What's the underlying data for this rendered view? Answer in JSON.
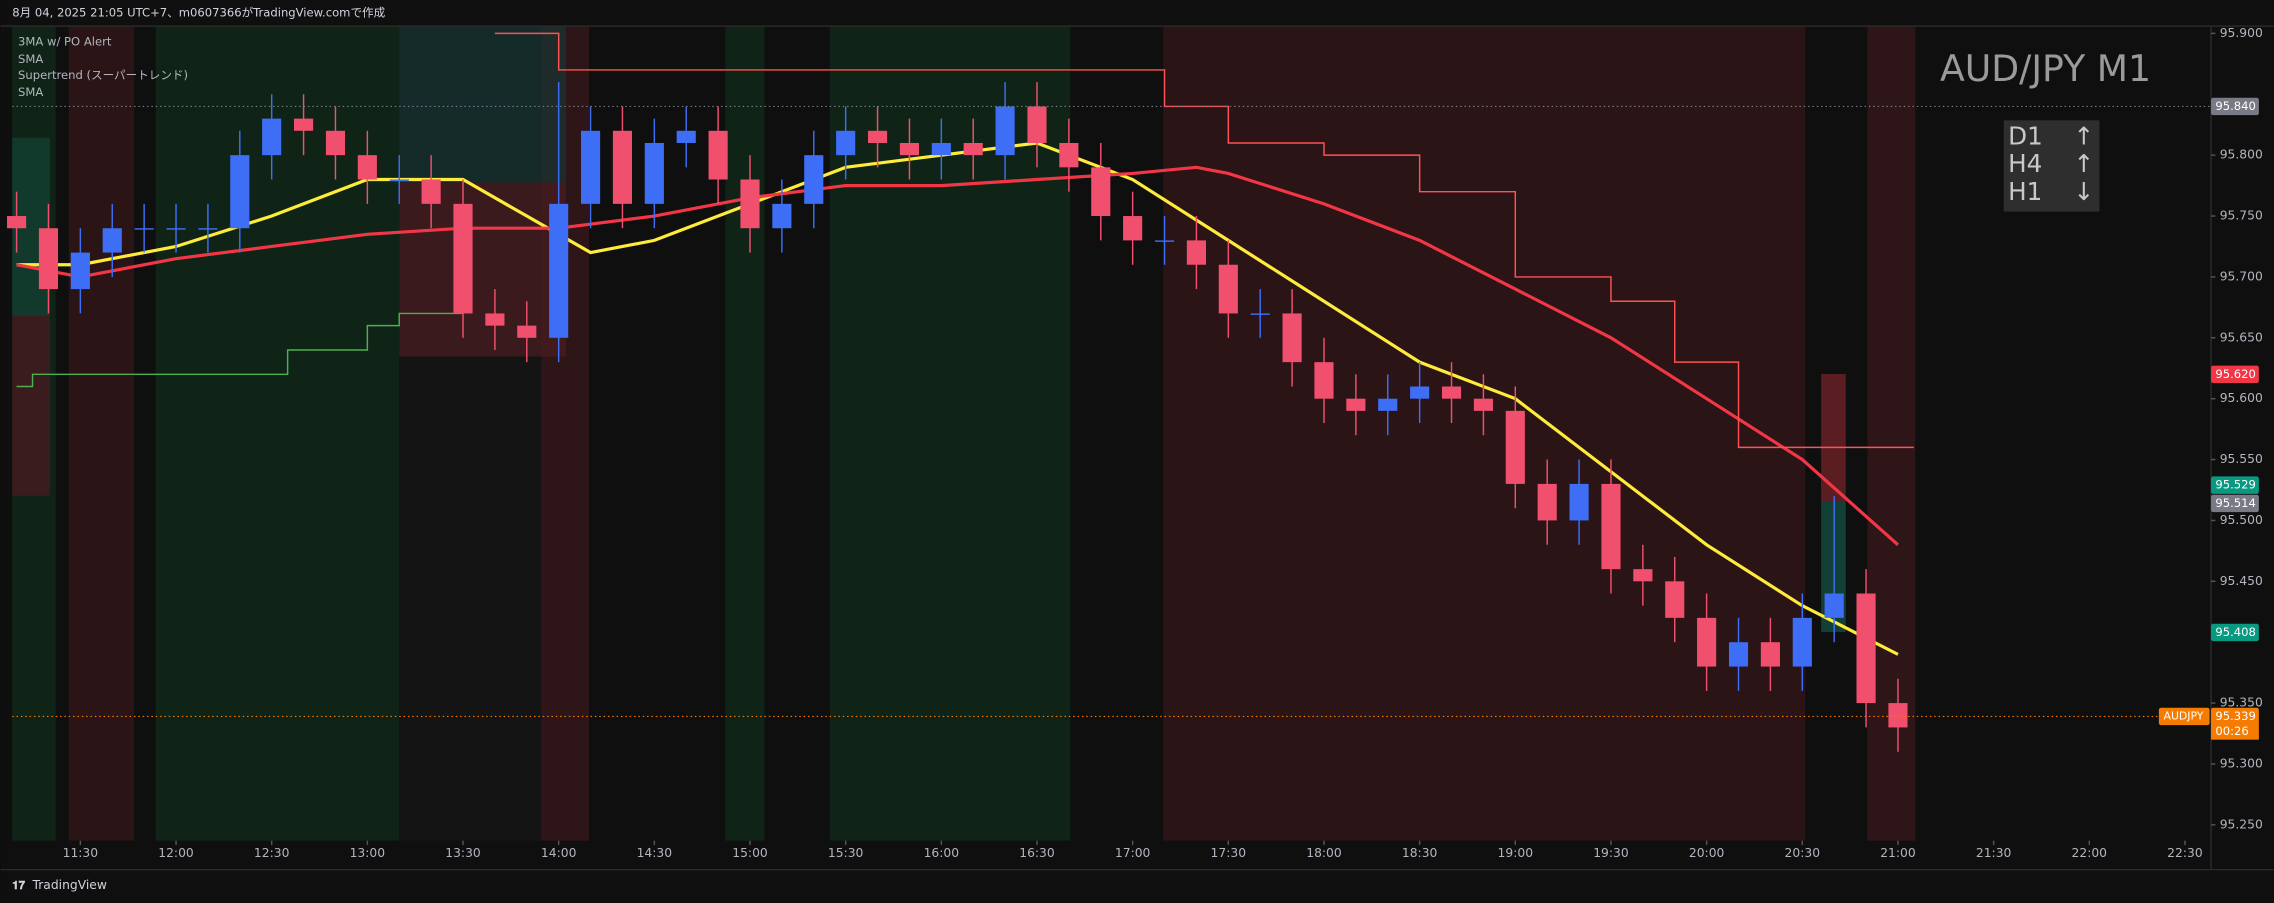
{
  "header": "8月 04, 2025 21:05 UTC+7、m0607366がTradingView.comで作成",
  "indicators": [
    "3MA w/ PO Alert",
    "SMA",
    "Supertrend (スーパートレンド)",
    "SMA"
  ],
  "symbol_title": "AUD/JPY M1",
  "trend_table": [
    {
      "tf": "D1",
      "arrow": "↑"
    },
    {
      "tf": "H4",
      "arrow": "↑"
    },
    {
      "tf": "H1",
      "arrow": "↓"
    }
  ],
  "footer": "TradingView",
  "chart_data": {
    "type": "candlestick",
    "x": [
      "11:10",
      "11:20",
      "11:30",
      "11:40",
      "11:50",
      "12:00",
      "12:10",
      "12:20",
      "12:30",
      "12:40",
      "12:50",
      "13:00",
      "13:10",
      "13:20",
      "13:30",
      "13:40",
      "13:50",
      "14:00",
      "14:10",
      "14:20",
      "14:30",
      "14:40",
      "14:50",
      "15:00",
      "15:10",
      "15:20",
      "15:30",
      "15:40",
      "15:50",
      "16:00",
      "16:10",
      "16:20",
      "16:30",
      "16:40",
      "16:50",
      "17:00",
      "17:10",
      "17:20",
      "17:30",
      "17:40",
      "17:50",
      "18:00",
      "18:10",
      "18:20",
      "18:30",
      "18:40",
      "18:50",
      "19:00",
      "19:10",
      "19:20",
      "19:30",
      "19:40",
      "19:50",
      "20:00",
      "20:10",
      "20:20",
      "20:30",
      "20:40",
      "20:50",
      "21:00"
    ],
    "open": [
      95.75,
      95.74,
      95.69,
      95.72,
      95.74,
      95.74,
      95.74,
      95.74,
      95.8,
      95.83,
      95.82,
      95.8,
      95.78,
      95.78,
      95.76,
      95.67,
      95.66,
      95.65,
      95.76,
      95.82,
      95.76,
      95.81,
      95.82,
      95.78,
      95.74,
      95.76,
      95.8,
      95.82,
      95.81,
      95.8,
      95.81,
      95.8,
      95.84,
      95.81,
      95.79,
      95.75,
      95.73,
      95.73,
      95.71,
      95.67,
      95.67,
      95.63,
      95.6,
      95.59,
      95.6,
      95.61,
      95.6,
      95.59,
      95.53,
      95.5,
      95.53,
      95.46,
      95.45,
      95.42,
      95.38,
      95.4,
      95.38,
      95.42,
      95.44,
      95.35
    ],
    "high": [
      95.77,
      95.76,
      95.74,
      95.76,
      95.76,
      95.76,
      95.76,
      95.82,
      95.85,
      95.85,
      95.84,
      95.82,
      95.8,
      95.8,
      95.78,
      95.69,
      95.68,
      95.86,
      95.84,
      95.84,
      95.83,
      95.84,
      95.84,
      95.8,
      95.78,
      95.82,
      95.84,
      95.84,
      95.83,
      95.83,
      95.83,
      95.86,
      95.86,
      95.83,
      95.81,
      95.77,
      95.75,
      95.75,
      95.73,
      95.69,
      95.69,
      95.65,
      95.62,
      95.62,
      95.63,
      95.63,
      95.62,
      95.61,
      95.55,
      95.55,
      95.55,
      95.48,
      95.47,
      95.44,
      95.42,
      95.42,
      95.44,
      95.52,
      95.46,
      95.37
    ],
    "low": [
      95.72,
      95.67,
      95.67,
      95.7,
      95.72,
      95.72,
      95.72,
      95.72,
      95.78,
      95.8,
      95.78,
      95.76,
      95.76,
      95.74,
      95.65,
      95.64,
      95.63,
      95.63,
      95.74,
      95.74,
      95.74,
      95.79,
      95.76,
      95.72,
      95.72,
      95.74,
      95.78,
      95.79,
      95.78,
      95.78,
      95.78,
      95.78,
      95.79,
      95.77,
      95.73,
      95.71,
      95.71,
      95.69,
      95.65,
      95.65,
      95.61,
      95.58,
      95.57,
      95.57,
      95.58,
      95.58,
      95.57,
      95.51,
      95.48,
      95.48,
      95.44,
      95.43,
      95.4,
      95.36,
      95.36,
      95.36,
      95.36,
      95.4,
      95.33,
      95.31
    ],
    "close": [
      95.74,
      95.69,
      95.72,
      95.74,
      95.74,
      95.74,
      95.74,
      95.8,
      95.83,
      95.82,
      95.8,
      95.78,
      95.78,
      95.76,
      95.67,
      95.66,
      95.65,
      95.76,
      95.82,
      95.76,
      95.81,
      95.82,
      95.78,
      95.74,
      95.76,
      95.8,
      95.82,
      95.81,
      95.8,
      95.81,
      95.8,
      95.84,
      95.81,
      95.79,
      95.75,
      95.73,
      95.73,
      95.71,
      95.67,
      95.67,
      95.63,
      95.6,
      95.59,
      95.6,
      95.61,
      95.6,
      95.59,
      95.53,
      95.5,
      95.53,
      95.46,
      95.45,
      95.42,
      95.38,
      95.4,
      95.38,
      95.42,
      95.44,
      95.35,
      95.33
    ],
    "up_color": "#3d6ef5",
    "down_color": "#f0506e",
    "series": [
      {
        "color": "#ffeb3b",
        "x": [
          "11:10",
          "11:30",
          "12:00",
          "12:30",
          "13:00",
          "13:30",
          "13:50",
          "14:10",
          "14:30",
          "15:00",
          "15:30",
          "16:00",
          "16:30",
          "17:00",
          "17:30",
          "18:00",
          "18:30",
          "19:00",
          "19:30",
          "20:00",
          "20:30",
          "21:00"
        ],
        "values": [
          95.71,
          95.71,
          95.725,
          95.75,
          95.78,
          95.78,
          95.75,
          95.72,
          95.73,
          95.76,
          95.79,
          95.8,
          95.81,
          95.78,
          95.73,
          95.68,
          95.63,
          95.6,
          95.54,
          95.48,
          95.43,
          95.39
        ]
      },
      {
        "color": "#f23645",
        "x": [
          "11:10",
          "11:30",
          "12:00",
          "12:30",
          "13:00",
          "13:30",
          "14:00",
          "14:30",
          "15:00",
          "15:30",
          "16:00",
          "16:30",
          "17:00",
          "17:20",
          "17:30",
          "18:00",
          "18:30",
          "19:00",
          "19:30",
          "20:00",
          "20:30",
          "21:00"
        ],
        "values": [
          95.71,
          95.7,
          95.715,
          95.725,
          95.735,
          95.74,
          95.74,
          95.75,
          95.765,
          95.775,
          95.775,
          95.78,
          95.785,
          95.79,
          95.785,
          95.76,
          95.73,
          95.69,
          95.65,
          95.6,
          95.55,
          95.48
        ]
      },
      {
        "color": "#4caf50",
        "x": [
          "11:10",
          "11:15",
          "12:30",
          "12:35",
          "13:00",
          "13:10",
          "13:30"
        ],
        "values": [
          95.61,
          95.62,
          95.62,
          95.64,
          95.66,
          95.67,
          95.67
        ]
      },
      {
        "color": "#ff5252",
        "x": [
          "13:40",
          "14:00",
          "16:45",
          "17:10",
          "17:30",
          "18:00",
          "18:30",
          "19:00",
          "19:30",
          "19:50",
          "20:10",
          "21:05"
        ],
        "values": [
          95.9,
          95.87,
          95.87,
          95.84,
          95.81,
          95.8,
          95.77,
          95.7,
          95.68,
          95.63,
          95.56,
          95.56
        ]
      }
    ],
    "ylim": [
      95.237,
      95.906
    ],
    "yticks": [
      {
        "value": 95.9,
        "label": "95.900"
      },
      {
        "value": 95.8,
        "label": "95.800"
      },
      {
        "value": 95.75,
        "label": "95.750"
      },
      {
        "value": 95.7,
        "label": "95.700"
      },
      {
        "value": 95.65,
        "label": "95.650"
      },
      {
        "value": 95.6,
        "label": "95.600"
      },
      {
        "value": 95.55,
        "label": "95.550"
      },
      {
        "value": 95.5,
        "label": "95.500"
      },
      {
        "value": 95.45,
        "label": "95.450"
      },
      {
        "value": 95.35,
        "label": "95.350"
      },
      {
        "value": 95.3,
        "label": "95.300"
      },
      {
        "value": 95.25,
        "label": "95.250"
      }
    ],
    "xticks": [
      "11:30",
      "12:00",
      "12:30",
      "13:00",
      "13:30",
      "14:00",
      "14:30",
      "15:00",
      "15:30",
      "16:00",
      "16:30",
      "17:00",
      "17:30",
      "18:00",
      "18:30",
      "19:00",
      "19:30",
      "20:00",
      "20:30",
      "21:00",
      "21:30",
      "22:00",
      "22:30"
    ],
    "price_labels": [
      {
        "value": 95.84,
        "label": "95.840",
        "color": "#787b86"
      },
      {
        "value": 95.62,
        "label": "95.620",
        "color": "#f23645"
      },
      {
        "value": 95.529,
        "label": "95.529",
        "color": "#089981"
      },
      {
        "value": 95.514,
        "label": "95.514",
        "color": "#787b86"
      },
      {
        "value": 95.408,
        "label": "95.408",
        "color": "#089981"
      },
      {
        "value": 95.339,
        "label": "95.339",
        "color": "#f57c00"
      }
    ],
    "last_symbol": "AUDJPY",
    "countdown": "00:26"
  }
}
